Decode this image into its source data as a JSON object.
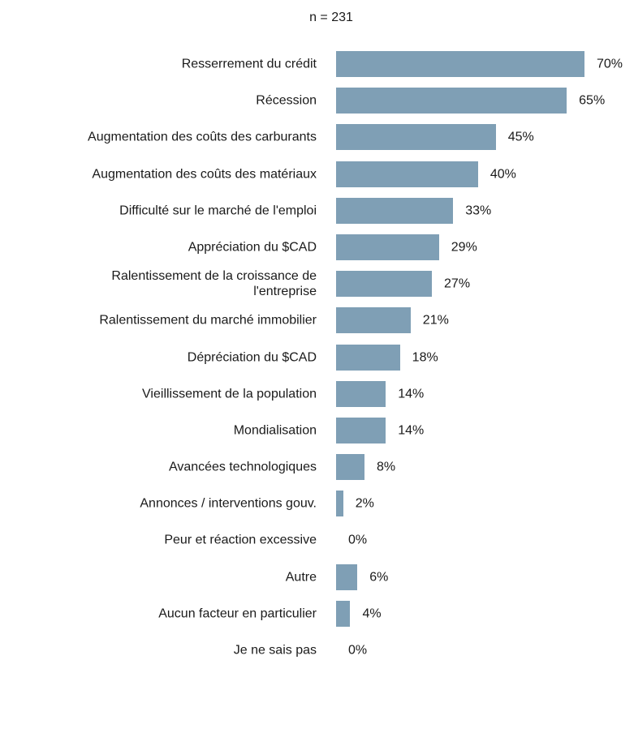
{
  "chart_data": {
    "type": "barh",
    "title": "n = 231",
    "categories": [
      "Resserrement du crédit",
      "Récession",
      "Augmentation des coûts des carburants",
      "Augmentation des coûts des matériaux",
      "Difficulté sur le marché de l'emploi",
      "Appréciation du $CAD",
      "Ralentissement de la croissance de\nl'entreprise",
      "Ralentissement du marché immobilier",
      "Dépréciation du $CAD",
      "Vieillissement de la population",
      "Mondialisation",
      "Avancées technologiques",
      "Annonces / interventions gouv.",
      "Peur et réaction excessive",
      "Autre",
      "Aucun facteur en particulier",
      "Je ne sais pas"
    ],
    "values": [
      70,
      65,
      45,
      40,
      33,
      29,
      27,
      21,
      18,
      14,
      14,
      8,
      2,
      0,
      6,
      4,
      0
    ],
    "value_labels": [
      "70%",
      "65%",
      "45%",
      "40%",
      "33%",
      "29%",
      "27%",
      "21%",
      "18%",
      "14%",
      "14%",
      "8%",
      "2%",
      "0%",
      "6%",
      "4%",
      "0%"
    ],
    "color": "#7f9fb5"
  }
}
